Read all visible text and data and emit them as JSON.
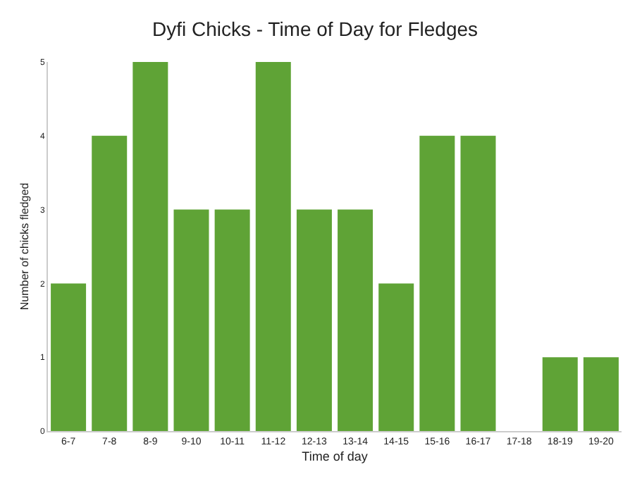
{
  "chart_data": {
    "type": "bar",
    "title": "Dyfi Chicks - Time of Day for Fledges",
    "xlabel": "Time of day",
    "ylabel": "Number of chicks fledged",
    "categories": [
      "6-7",
      "7-8",
      "8-9",
      "9-10",
      "10-11",
      "11-12",
      "12-13",
      "13-14",
      "14-15",
      "15-16",
      "16-17",
      "17-18",
      "18-19",
      "19-20"
    ],
    "values": [
      2,
      4,
      5,
      3,
      3,
      5,
      3,
      3,
      2,
      4,
      4,
      0,
      1,
      1
    ],
    "color": "#5fa336",
    "ylim": [
      0,
      5
    ],
    "yticks": [
      0,
      1,
      2,
      3,
      4,
      5
    ],
    "grid": false,
    "legend": false
  }
}
